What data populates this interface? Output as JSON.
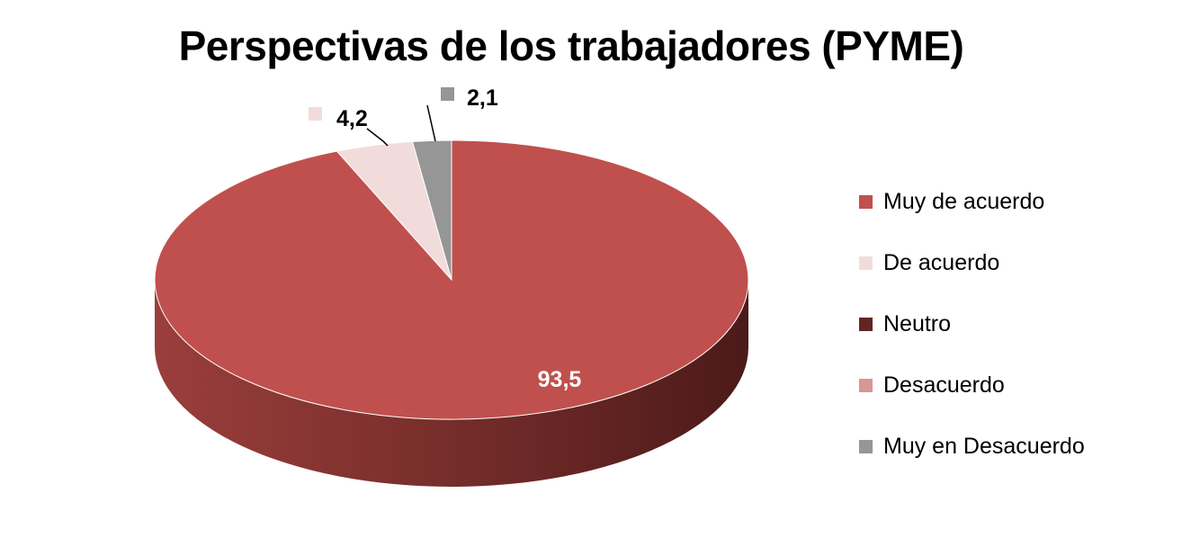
{
  "chart_data": {
    "type": "pie",
    "title": "Perspectivas de los trabajadores (PYME)",
    "categories": [
      "Muy de acuerdo",
      "De acuerdo",
      "Neutro",
      "Desacuerdo",
      "Muy en Desacuerdo"
    ],
    "values": [
      93.5,
      4.2,
      0,
      0,
      2.1
    ],
    "data_labels": [
      "93,5",
      "4,2",
      "",
      "",
      "2,1"
    ],
    "colors": [
      "#C0504D",
      "#F2DCDB",
      "#632523",
      "#D99694",
      "#969696"
    ],
    "style": "3d",
    "legend_position": "right"
  }
}
